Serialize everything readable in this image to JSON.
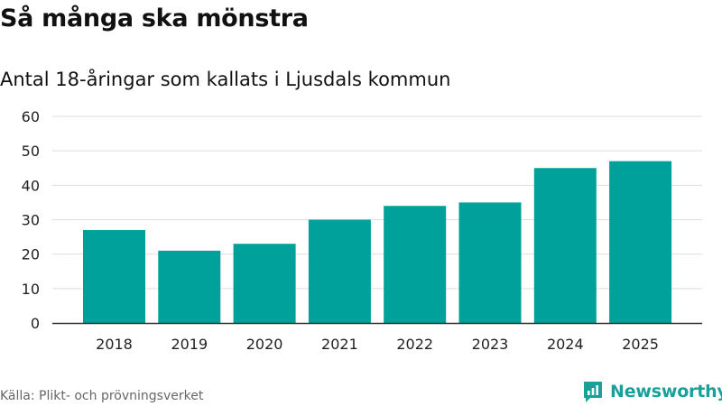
{
  "title": "Så många ska mönstra",
  "subtitle": "Antal 18-åringar som kallats i Ljusdals kommun",
  "source": "Källa: Plikt- och prövningsverket",
  "brand": {
    "name": "Newsworthy",
    "color": "#19a09b",
    "icon": "newsworthy-logo-icon"
  },
  "colors": {
    "bar": "#00a19a",
    "grid": "#dddddd",
    "axis": "#333333"
  },
  "chart_data": {
    "type": "bar",
    "title": "Så många ska mönstra",
    "subtitle": "Antal 18-åringar som kallats i Ljusdals kommun",
    "categories": [
      "2018",
      "2019",
      "2020",
      "2021",
      "2022",
      "2023",
      "2024",
      "2025"
    ],
    "values": [
      27,
      21,
      23,
      30,
      34,
      35,
      45,
      47
    ],
    "yticks": [
      0,
      10,
      20,
      30,
      40,
      50,
      60
    ],
    "ylim": [
      0,
      60
    ],
    "xlabel": "",
    "ylabel": "",
    "grid": true,
    "legend": "none"
  }
}
